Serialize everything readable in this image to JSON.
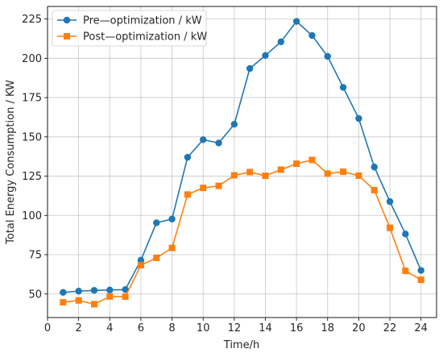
{
  "chart_data": {
    "type": "line",
    "title": "",
    "xlabel": "Time/h",
    "ylabel": "Total Energy Consumption / KW",
    "xlim": [
      0,
      25
    ],
    "ylim": [
      35,
      233
    ],
    "x_ticks": [
      0,
      2,
      4,
      6,
      8,
      10,
      12,
      14,
      16,
      18,
      20,
      22,
      24
    ],
    "y_ticks": [
      50,
      75,
      100,
      125,
      150,
      175,
      200,
      225
    ],
    "grid": true,
    "legend_position": "top-left",
    "x": [
      1,
      2,
      3,
      4,
      5,
      6,
      7,
      8,
      9,
      10,
      11,
      12,
      13,
      14,
      15,
      16,
      17,
      18,
      19,
      20,
      21,
      22,
      23,
      24
    ],
    "series": [
      {
        "name": "Pre—optimization / kW",
        "color": "#1f77b4",
        "marker": "circle",
        "values": [
          51,
          51.8,
          52.3,
          52.5,
          52.8,
          71.5,
          95.3,
          97.7,
          137,
          148.2,
          146.1,
          158,
          193.5,
          201.8,
          210.5,
          223.5,
          214.5,
          201.2,
          181.5,
          161.7,
          130.8,
          108.8,
          88.2,
          65
        ]
      },
      {
        "name": "Post—optimization / kW",
        "color": "#ff7f0e",
        "marker": "square",
        "values": [
          44.7,
          45.9,
          43.5,
          48.4,
          48.3,
          68.3,
          73,
          79.3,
          113.3,
          117.5,
          118.8,
          125.5,
          127.6,
          125.2,
          129.1,
          132.9,
          135.3,
          126.6,
          127.8,
          125.3,
          116.1,
          92.1,
          64.7,
          59
        ]
      }
    ]
  }
}
